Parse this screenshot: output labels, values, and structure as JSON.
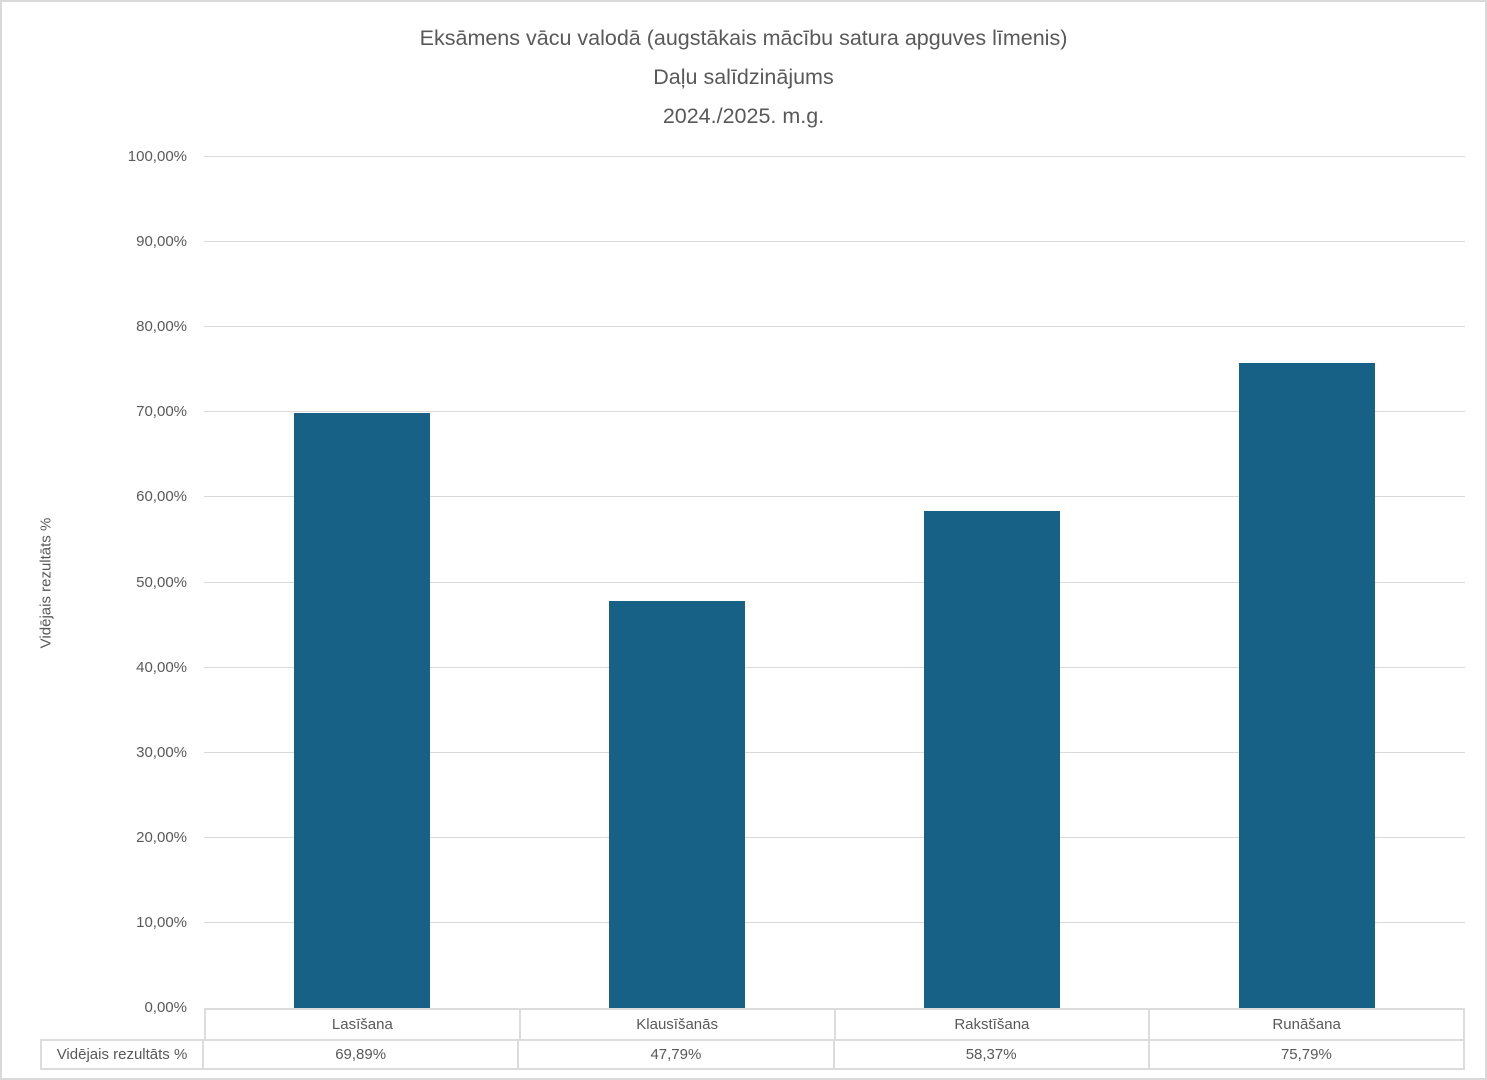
{
  "chart_data": {
    "type": "bar",
    "title": "Eksāmens vācu valodā (augstākais mācību satura apguves līmenis) Daļu salīdzinājums 2024./2025. m.g.",
    "title_lines": [
      "Eksāmens vācu valodā (augstākais mācību satura apguves līmenis)",
      "Daļu salīdzinājums",
      "2024./2025. m.g."
    ],
    "categories": [
      "Lasīšana",
      "Klausīšanās",
      "Rakstīšana",
      "Runāšana"
    ],
    "values": [
      69.89,
      47.79,
      58.37,
      75.79
    ],
    "value_labels": [
      "69,89%",
      "47,79%",
      "58,37%",
      "75,79%"
    ],
    "series_name": "Vidējais rezultāts %",
    "xlabel": "",
    "ylabel": "Vidējais rezultāts %",
    "ylim": [
      0,
      100
    ],
    "y_tick_labels": [
      "0,00%",
      "10,00%",
      "20,00%",
      "30,00%",
      "40,00%",
      "50,00%",
      "60,00%",
      "70,00%",
      "80,00%",
      "90,00%",
      "100,00%"
    ],
    "grid": true,
    "legend": false,
    "data_table": {
      "row_label": "Vidējais rezultāts %"
    },
    "colors": {
      "bar": "#166185",
      "text": "#595959",
      "gridline": "#D9D9D9",
      "table_border": "#DCDCDC",
      "chart_border": "#D9D9D9"
    }
  }
}
